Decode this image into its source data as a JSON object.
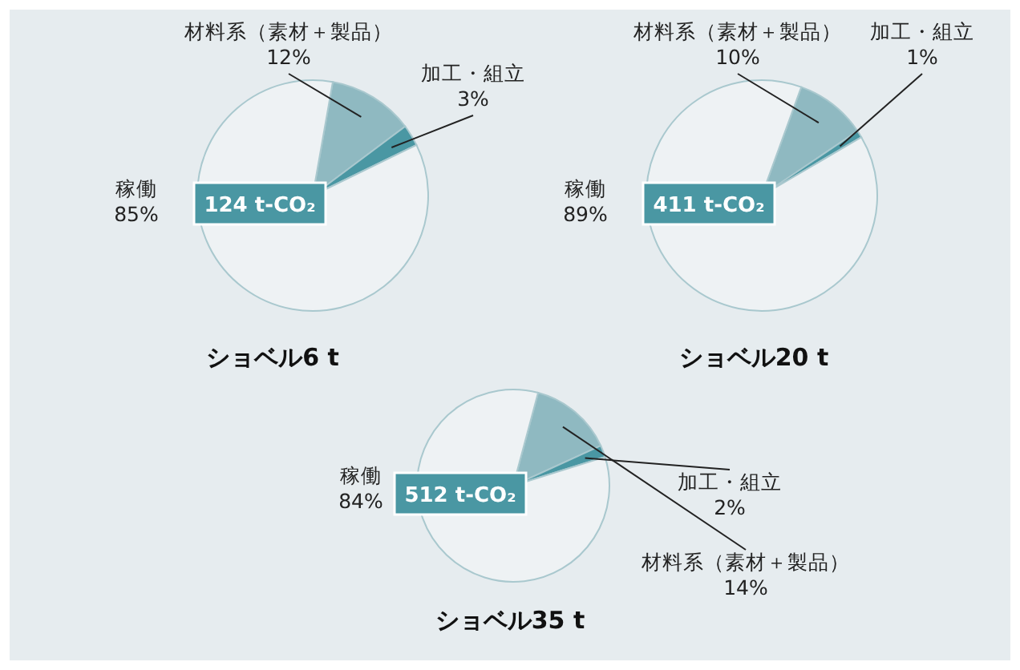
{
  "chart_data": [
    {
      "type": "pie",
      "title": "ショベル6 t",
      "categories": [
        "材料系（素材＋製品）",
        "加工・組立",
        "稼働"
      ],
      "values": [
        12,
        3,
        85
      ],
      "colors": [
        "#8fb9c1",
        "#4a97a3",
        "#eef2f4"
      ],
      "value_labels": [
        "12%",
        "3%",
        "85%"
      ],
      "annotations": [
        "124 t-CO₂"
      ]
    },
    {
      "type": "pie",
      "title": "ショベル20 t",
      "categories": [
        "材料系（素材＋製品）",
        "加工・組立",
        "稼働"
      ],
      "values": [
        10,
        1,
        89
      ],
      "colors": [
        "#8fb9c1",
        "#4a97a3",
        "#eef2f4"
      ],
      "value_labels": [
        "10%",
        "1%",
        "89%"
      ],
      "annotations": [
        "411 t-CO₂"
      ]
    },
    {
      "type": "pie",
      "title": "ショベル35 t",
      "categories": [
        "材料系（素材＋製品）",
        "加工・組立",
        "稼働"
      ],
      "values": [
        14,
        2,
        84
      ],
      "colors": [
        "#8fb9c1",
        "#4a97a3",
        "#eef2f4"
      ],
      "value_labels": [
        "14%",
        "2%",
        "84%"
      ],
      "annotations": [
        "512 t-CO₂"
      ]
    }
  ]
}
